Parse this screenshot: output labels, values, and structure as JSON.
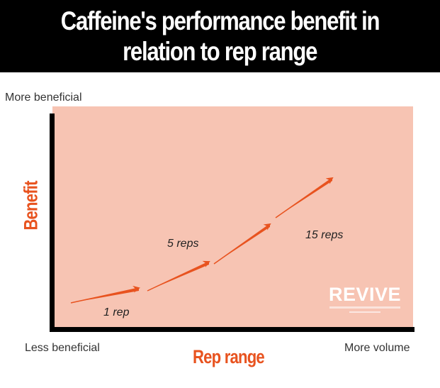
{
  "title": {
    "line1": "Caffeine's performance benefit in",
    "line2": "relation to rep range"
  },
  "y_axis": {
    "title": "Benefit",
    "top_label": "More beneficial"
  },
  "x_axis": {
    "title": "Rep range",
    "left_label": "Less beneficial",
    "right_label": "More volume"
  },
  "steps": [
    {
      "label": "1 rep"
    },
    {
      "label": "5 reps"
    },
    {
      "label": "15 reps"
    }
  ],
  "logo": {
    "text": "REVIVE"
  },
  "colors": {
    "banner": "#000000",
    "accent": "#e8531f",
    "plot_background": "#f7c4b3",
    "axis": "#000000"
  }
}
